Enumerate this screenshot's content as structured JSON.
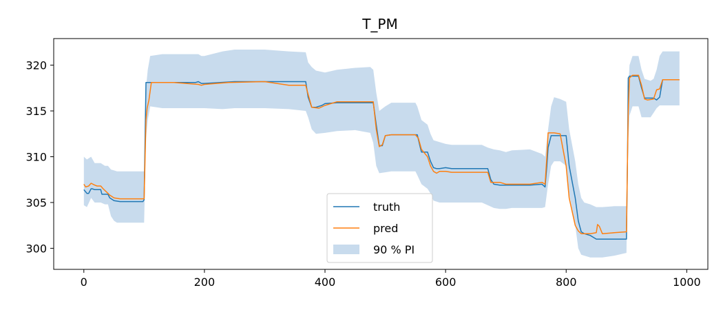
{
  "chart_data": {
    "type": "line",
    "title": "T_PM",
    "xlabel": "",
    "ylabel": "",
    "xlim": [
      -50,
      1035
    ],
    "ylim": [
      297.7,
      322.9
    ],
    "xticks": [
      0,
      200,
      400,
      600,
      800,
      1000
    ],
    "yticks": [
      300,
      305,
      310,
      315,
      320
    ],
    "grid": false,
    "legend_position": "lower-center",
    "colors": {
      "truth": "#1f77b4",
      "pred": "#ff7f0e",
      "band": "#aac8e4"
    },
    "series": [
      {
        "name": "truth",
        "x": [
          0,
          5,
          8,
          12,
          14,
          18,
          28,
          30,
          40,
          43,
          50,
          60,
          75,
          90,
          98,
          100,
          103,
          110,
          150,
          185,
          190,
          195,
          200,
          250,
          300,
          340,
          368,
          372,
          378,
          385,
          395,
          400,
          420,
          450,
          480,
          485,
          490,
          495,
          500,
          510,
          520,
          550,
          553,
          558,
          560,
          570,
          575,
          580,
          585,
          590,
          600,
          610,
          640,
          660,
          670,
          675,
          680,
          690,
          700,
          710,
          740,
          760,
          765,
          768,
          770,
          775,
          780,
          790,
          800,
          805,
          815,
          820,
          825,
          830,
          840,
          850,
          855,
          860,
          880,
          900,
          902,
          903,
          905,
          910,
          920,
          925,
          930,
          935,
          945,
          950,
          955,
          960,
          988
        ],
        "y": [
          306.4,
          306.0,
          306.0,
          306.5,
          306.5,
          306.4,
          306.4,
          305.9,
          305.9,
          305.5,
          305.2,
          305.1,
          305.1,
          305.1,
          305.1,
          305.3,
          318.1,
          318.1,
          318.1,
          318.1,
          318.2,
          318.0,
          318.0,
          318.2,
          318.2,
          318.2,
          318.2,
          316.5,
          315.4,
          315.4,
          315.6,
          315.8,
          315.9,
          315.9,
          315.9,
          313.5,
          311.2,
          311.2,
          312.3,
          312.4,
          312.4,
          312.4,
          312.4,
          311.0,
          310.5,
          310.5,
          309.5,
          308.8,
          308.7,
          308.7,
          308.8,
          308.7,
          308.7,
          308.7,
          308.7,
          307.5,
          307.0,
          306.9,
          306.9,
          306.9,
          306.9,
          307.0,
          306.7,
          309.0,
          311.0,
          312.3,
          312.3,
          312.3,
          312.3,
          309.0,
          305.5,
          303.0,
          301.8,
          301.6,
          301.4,
          301.0,
          301.0,
          301.0,
          301.0,
          301.0,
          311.0,
          318.6,
          318.8,
          318.8,
          318.8,
          317.5,
          316.4,
          316.4,
          316.4,
          316.2,
          316.5,
          318.4,
          318.4
        ]
      },
      {
        "name": "pred",
        "x": [
          0,
          3,
          8,
          12,
          18,
          22,
          28,
          32,
          40,
          43,
          50,
          60,
          75,
          90,
          98,
          100,
          103,
          105,
          108,
          112,
          150,
          190,
          195,
          200,
          240,
          300,
          340,
          368,
          372,
          378,
          390,
          400,
          420,
          450,
          480,
          485,
          490,
          495,
          500,
          510,
          520,
          550,
          555,
          560,
          570,
          575,
          580,
          585,
          590,
          600,
          610,
          640,
          660,
          670,
          675,
          680,
          690,
          700,
          710,
          740,
          760,
          765,
          768,
          770,
          775,
          780,
          790,
          800,
          805,
          815,
          820,
          825,
          830,
          840,
          850,
          852,
          855,
          860,
          880,
          900,
          902,
          903,
          905,
          910,
          920,
          925,
          930,
          935,
          945,
          950,
          955,
          960,
          988
        ],
        "y": [
          307.0,
          306.7,
          306.8,
          307.1,
          306.9,
          306.8,
          306.8,
          306.5,
          306.0,
          305.8,
          305.5,
          305.4,
          305.4,
          305.4,
          305.4,
          305.4,
          314.0,
          315.3,
          316.2,
          318.1,
          318.1,
          317.9,
          317.8,
          317.9,
          318.1,
          318.2,
          317.8,
          317.8,
          316.8,
          315.4,
          315.3,
          315.6,
          316.0,
          316.0,
          316.0,
          313.0,
          311.1,
          311.3,
          312.3,
          312.4,
          312.4,
          312.4,
          312.0,
          310.8,
          310.0,
          309.0,
          308.4,
          308.2,
          308.4,
          308.4,
          308.3,
          308.3,
          308.3,
          308.3,
          307.2,
          307.2,
          307.2,
          307.0,
          307.0,
          307.0,
          307.2,
          307.0,
          310.0,
          312.6,
          312.6,
          312.6,
          312.5,
          309.0,
          305.5,
          302.5,
          301.9,
          301.6,
          301.6,
          301.6,
          301.7,
          302.6,
          302.4,
          301.6,
          301.7,
          301.8,
          310.8,
          314.9,
          318.6,
          318.9,
          318.9,
          317.8,
          316.3,
          316.2,
          316.3,
          317.3,
          317.4,
          318.4,
          318.4
        ]
      },
      {
        "name": "90 % PI",
        "x": [
          0,
          5,
          12,
          18,
          28,
          35,
          40,
          45,
          50,
          55,
          70,
          85,
          100,
          103,
          106,
          110,
          130,
          190,
          195,
          200,
          230,
          250,
          300,
          340,
          368,
          372,
          378,
          385,
          400,
          420,
          450,
          475,
          480,
          485,
          490,
          500,
          510,
          520,
          550,
          553,
          560,
          570,
          575,
          580,
          590,
          600,
          610,
          640,
          660,
          670,
          680,
          690,
          700,
          710,
          740,
          760,
          765,
          770,
          775,
          780,
          790,
          800,
          805,
          815,
          820,
          825,
          830,
          840,
          850,
          860,
          880,
          900,
          902,
          905,
          910,
          920,
          925,
          930,
          940,
          945,
          950,
          955,
          960,
          988
        ],
        "upper": [
          310.0,
          309.7,
          310.0,
          309.3,
          309.3,
          309.0,
          309.0,
          308.6,
          308.5,
          308.4,
          308.4,
          308.4,
          308.4,
          317.5,
          319.5,
          321.0,
          321.2,
          321.2,
          321.0,
          321.0,
          321.5,
          321.7,
          321.7,
          321.5,
          321.4,
          320.3,
          319.8,
          319.4,
          319.2,
          319.5,
          319.7,
          319.8,
          319.5,
          317.0,
          315.0,
          315.5,
          315.9,
          315.9,
          315.9,
          315.5,
          314.0,
          313.5,
          312.5,
          311.8,
          311.6,
          311.4,
          311.3,
          311.3,
          311.3,
          311.0,
          310.8,
          310.7,
          310.5,
          310.7,
          310.8,
          310.3,
          310.0,
          313.0,
          315.5,
          316.5,
          316.3,
          316.0,
          313.0,
          309.5,
          307.0,
          305.5,
          305.0,
          304.8,
          304.5,
          304.5,
          304.6,
          304.6,
          316.0,
          320.0,
          321.0,
          321.0,
          319.5,
          318.5,
          318.3,
          318.5,
          319.5,
          321.0,
          321.5,
          321.5
        ],
        "lower": [
          304.7,
          304.5,
          305.5,
          305.0,
          305.0,
          304.8,
          304.8,
          303.5,
          303.0,
          302.8,
          302.8,
          302.8,
          302.8,
          312.0,
          314.0,
          315.5,
          315.3,
          315.3,
          315.3,
          315.3,
          315.2,
          315.3,
          315.3,
          315.2,
          315.0,
          314.3,
          313.0,
          312.5,
          312.6,
          312.8,
          312.9,
          312.6,
          311.5,
          309.0,
          308.2,
          308.3,
          308.4,
          308.4,
          308.4,
          308.0,
          307.0,
          306.5,
          306.0,
          305.2,
          305.0,
          305.0,
          305.0,
          305.0,
          305.0,
          304.7,
          304.4,
          304.3,
          304.3,
          304.4,
          304.4,
          304.4,
          304.5,
          307.0,
          309.0,
          309.5,
          309.5,
          309.0,
          306.0,
          302.5,
          300.0,
          299.3,
          299.2,
          299.0,
          299.0,
          299.0,
          299.2,
          299.5,
          310.0,
          314.5,
          315.5,
          315.5,
          314.3,
          314.3,
          314.3,
          314.8,
          315.3,
          315.6,
          315.6,
          315.6
        ]
      }
    ]
  }
}
